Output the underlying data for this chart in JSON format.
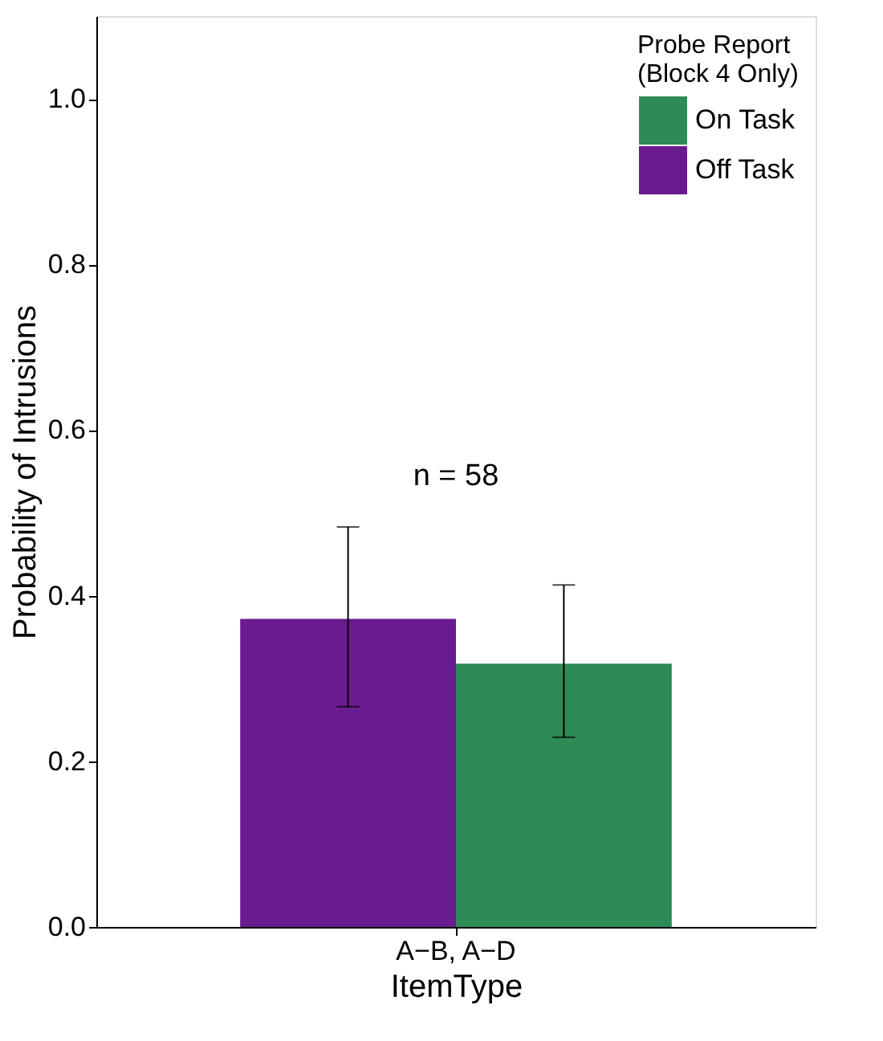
{
  "chart_data": {
    "type": "bar",
    "xlabel": "ItemType",
    "ylabel": "Probability of Intrusions",
    "legend_title": "Probe Report\n(Block 4 Only)",
    "categories": [
      "A−B, A−D"
    ],
    "series": [
      {
        "name": "Off Task",
        "color": "#6a1b8f",
        "values": [
          0.372
        ],
        "errors": [
          [
            0.266,
            0.483
          ]
        ]
      },
      {
        "name": "On Task",
        "color": "#2e8b57",
        "values": [
          0.318
        ],
        "errors": [
          [
            0.229,
            0.413
          ]
        ]
      }
    ],
    "ylim": [
      0,
      1.1
    ],
    "yticks": [
      {
        "value": 0,
        "label": "0.0"
      },
      0.2,
      0.4,
      0.6,
      0.8,
      {
        "value": 1,
        "label": "1.0"
      }
    ],
    "annotations": [
      "n = 58"
    ],
    "legend": "top right",
    "grid": false
  }
}
